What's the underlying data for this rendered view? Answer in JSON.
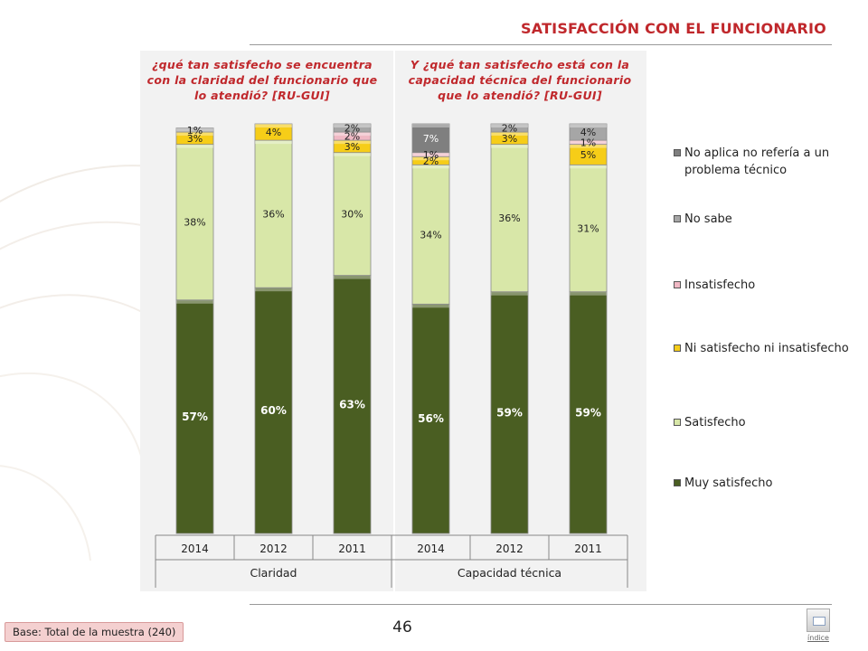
{
  "page": {
    "title": "SATISFACCIÓN CON EL FUNCIONARIO",
    "base_note": "Base: Total de la muestra (240)",
    "page_number": "46",
    "index_label": "índice"
  },
  "questions": {
    "claridad": "¿qué tan satisfecho se encuentra con la claridad del funcionario que lo atendió? [RU-GUI]",
    "capacidad": "Y ¿qué tan satisfecho está con la capacidad técnica del funcionario que lo atendió? [RU-GUI]"
  },
  "chart_data": {
    "type": "bar",
    "stacked": true,
    "percent_stacked": true,
    "groups": [
      {
        "label": "Claridad",
        "categories": [
          "2014",
          "2012",
          "2011"
        ]
      },
      {
        "label": "Capacidad técnica",
        "categories": [
          "2014",
          "2012",
          "2011"
        ]
      }
    ],
    "categories": [
      "2014",
      "2012",
      "2011",
      "2014",
      "2012",
      "2011"
    ],
    "series": [
      {
        "name": "Muy satisfecho",
        "color": "#4a5e22",
        "values": [
          57,
          60,
          63,
          56,
          59,
          59
        ]
      },
      {
        "name": "Satisfecho",
        "color": "#d8e7a8",
        "values": [
          38,
          36,
          30,
          34,
          36,
          31
        ]
      },
      {
        "name": "Ni satisfecho ni insatisfecho",
        "color": "#f6cd18",
        "values": [
          3,
          4,
          3,
          2,
          3,
          5
        ]
      },
      {
        "name": "Insatisfecho",
        "color": "#f0b8c4",
        "values": [
          0,
          0,
          2,
          1,
          0,
          1
        ]
      },
      {
        "name": "No sabe",
        "color": "#a6a6a6",
        "values": [
          1,
          0,
          2,
          0,
          2,
          4
        ]
      },
      {
        "name": "No aplica no refería a un problema técnico",
        "color": "#7f7f7f",
        "values": [
          0,
          0,
          0,
          7,
          0,
          0
        ]
      }
    ],
    "data_labels": [
      [
        "57%",
        "60%",
        "63%",
        "56%",
        "59%",
        "59%"
      ],
      [
        "38%",
        "36%",
        "30%",
        "34%",
        "36%",
        "31%"
      ],
      [
        "3%",
        "4%",
        "3%",
        "2%",
        "3%",
        "5%"
      ],
      [
        "",
        "",
        "2%",
        "1%",
        "",
        "1%"
      ],
      [
        "1%",
        "",
        "2%",
        "",
        "2%",
        "4%"
      ],
      [
        "",
        "",
        "",
        "7%",
        "",
        ""
      ]
    ],
    "ylim": [
      0,
      100
    ],
    "legend_position": "right",
    "grid": false
  }
}
